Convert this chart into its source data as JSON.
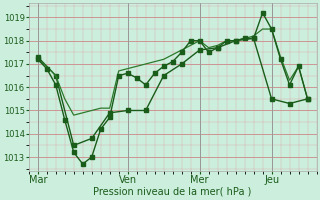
{
  "background_color": "#cceedd",
  "grid_major_color": "#cc8888",
  "grid_minor_color": "#ddaaaa",
  "line_color_dark": "#1a5c1a",
  "line_color_mid": "#2d7a2d",
  "xlabel": "Pression niveau de la mer( hPa )",
  "xlabel_color": "#1a5c1a",
  "tick_color": "#1a5c1a",
  "day_labels": [
    "Mar",
    "Ven",
    "Mer",
    "Jeu"
  ],
  "day_positions": [
    0,
    30,
    54,
    78
  ],
  "xlim": [
    -3,
    93
  ],
  "ylim": [
    1012.4,
    1019.6
  ],
  "yticks": [
    1013,
    1014,
    1015,
    1016,
    1017,
    1018,
    1019
  ],
  "vline_color": "#999999",
  "series1_x": [
    0,
    3,
    6,
    9,
    12,
    15,
    18,
    21,
    24,
    27,
    30,
    33,
    36,
    39,
    42,
    45,
    48,
    51,
    54,
    57,
    60,
    63,
    66,
    69,
    72,
    75,
    78,
    81,
    84,
    87,
    90
  ],
  "series1_y": [
    1017.2,
    1016.8,
    1016.1,
    1014.6,
    1013.2,
    1012.7,
    1013.0,
    1014.2,
    1014.7,
    1016.5,
    1016.6,
    1016.4,
    1016.1,
    1016.6,
    1016.9,
    1017.1,
    1017.5,
    1018.0,
    1018.0,
    1017.5,
    1017.7,
    1018.0,
    1018.0,
    1018.1,
    1018.1,
    1019.2,
    1018.5,
    1017.2,
    1016.1,
    1016.9,
    1015.5
  ],
  "series2_x": [
    0,
    3,
    6,
    9,
    12,
    15,
    18,
    21,
    24,
    27,
    30,
    33,
    36,
    39,
    42,
    45,
    48,
    51,
    54,
    57,
    60,
    63,
    66,
    69,
    72,
    75,
    78,
    81,
    84,
    87,
    90
  ],
  "series2_y": [
    1017.2,
    1016.9,
    1016.5,
    1015.5,
    1014.8,
    1014.9,
    1015.0,
    1015.1,
    1015.1,
    1016.7,
    1016.8,
    1016.9,
    1017.0,
    1017.1,
    1017.2,
    1017.4,
    1017.6,
    1017.8,
    1018.0,
    1017.7,
    1017.8,
    1018.0,
    1018.0,
    1018.1,
    1018.2,
    1018.5,
    1018.5,
    1017.3,
    1016.3,
    1016.9,
    1015.5
  ],
  "series3_x": [
    0,
    6,
    12,
    18,
    24,
    30,
    36,
    42,
    48,
    54,
    60,
    66,
    72,
    78,
    84,
    90
  ],
  "series3_y": [
    1017.3,
    1016.5,
    1013.5,
    1013.8,
    1014.9,
    1015.0,
    1015.0,
    1016.5,
    1017.0,
    1017.6,
    1017.7,
    1018.0,
    1018.1,
    1015.5,
    1015.3,
    1015.5
  ]
}
